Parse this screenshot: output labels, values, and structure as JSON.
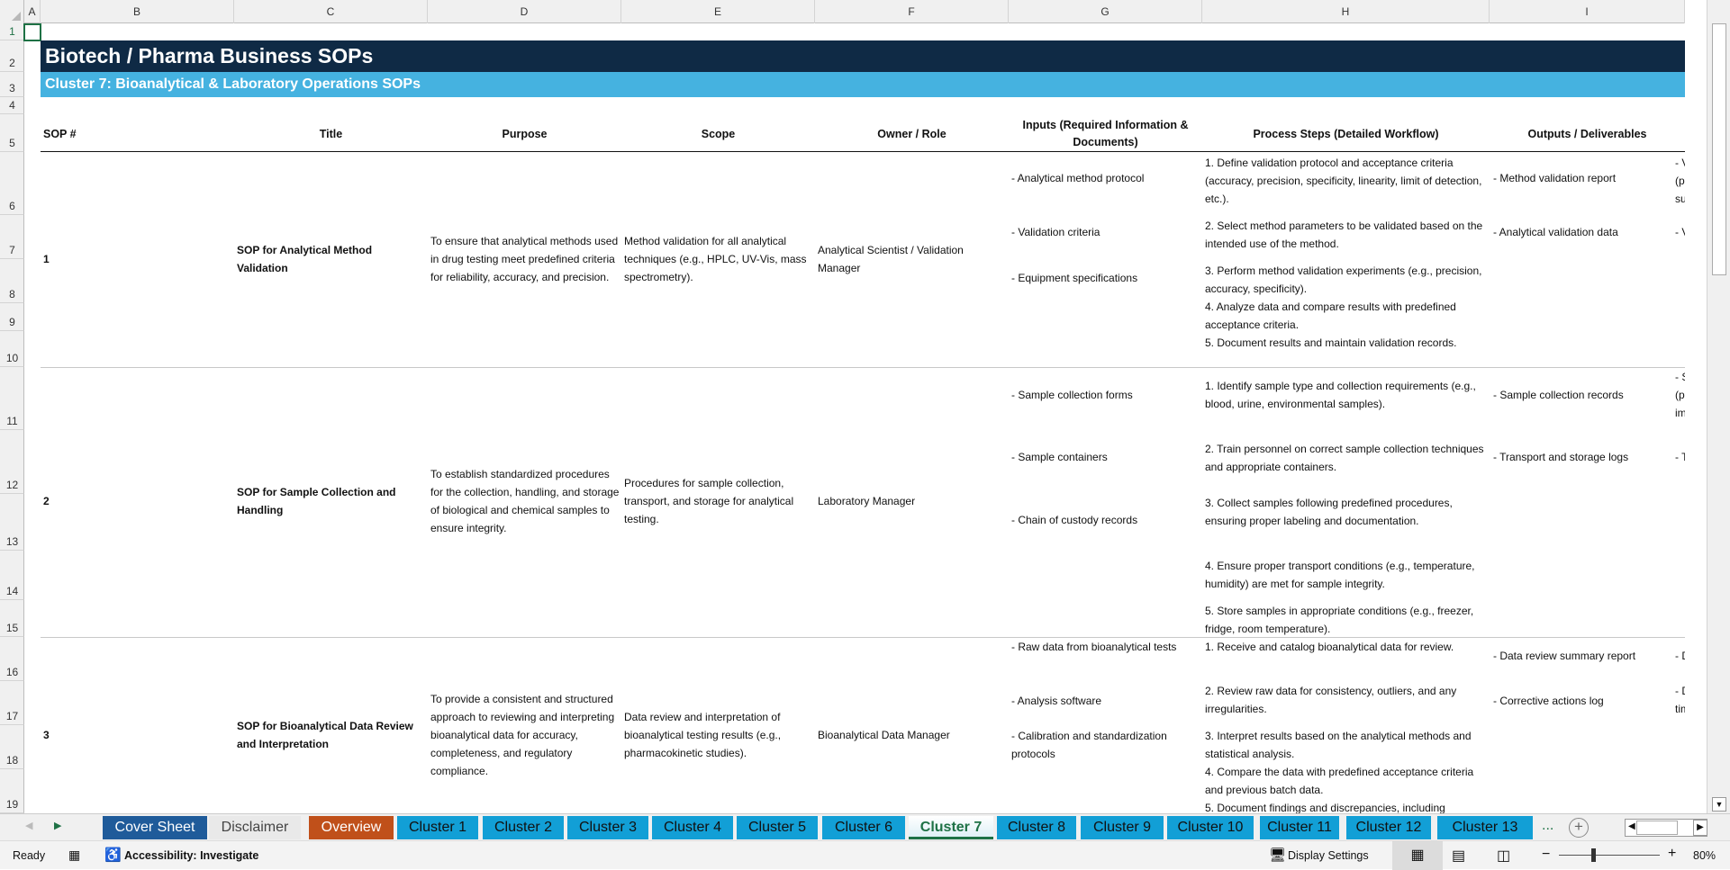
{
  "columns": [
    "A",
    "B",
    "C",
    "D",
    "E",
    "F",
    "G",
    "H",
    "I"
  ],
  "rows": [
    "1",
    "2",
    "3",
    "4",
    "5",
    "6",
    "7",
    "8",
    "9",
    "10",
    "11",
    "12",
    "13",
    "14",
    "15",
    "16",
    "17",
    "18",
    "19"
  ],
  "title": "Biotech / Pharma Business SOPs",
  "subtitle": "Cluster 7: Bioanalytical & Laboratory Operations SOPs",
  "headers": {
    "sop": "SOP #",
    "title": "Title",
    "purpose": "Purpose",
    "scope": "Scope",
    "owner": "Owner / Role",
    "inputs": "Inputs (Required Information & Documents)",
    "steps": "Process Steps (Detailed Workflow)",
    "outputs": "Outputs / Deliverables"
  },
  "sops": [
    {
      "num": "1",
      "title": "SOP for Analytical Method Validation",
      "purpose": "To ensure that analytical methods used in drug testing meet predefined criteria for reliability, accuracy, and precision.",
      "scope": "Method validation for all analytical techniques (e.g., HPLC, UV-Vis, mass spectrometry).",
      "owner": "Analytical Scientist / Validation Manager",
      "inputs": [
        "- Analytical method protocol",
        "- Validation criteria",
        "- Equipment specifications"
      ],
      "steps": [
        "1. Define validation protocol and acceptance criteria (accuracy, precision, specificity, linearity, limit of detection, etc.).",
        "2. Select method parameters to be validated based on the intended use of the method.",
        "3. Perform method validation experiments (e.g., precision, accuracy, specificity).",
        "4. Analyze data and compare results with predefined acceptance criteria.",
        "5. Document results and maintain validation records."
      ],
      "outputs": [
        "- Method validation report",
        "- Analytical validation data"
      ],
      "next_col": [
        "- Va",
        "(pe",
        "suc",
        "- Va"
      ]
    },
    {
      "num": "2",
      "title": "SOP for Sample Collection and Handling",
      "purpose": "To establish standardized procedures for the collection, handling, and storage of biological and chemical samples to ensure integrity.",
      "scope": "Procedures for sample collection, transport, and storage for analytical testing.",
      "owner": "Laboratory Manager",
      "inputs": [
        "- Sample collection forms",
        "- Sample containers",
        "- Chain of custody records"
      ],
      "steps": [
        "1. Identify sample type and collection requirements (e.g., blood, urine, environmental samples).",
        "2. Train personnel on correct sample collection techniques and appropriate containers.",
        "3. Collect samples following predefined procedures, ensuring proper labeling and documentation.",
        "4. Ensure proper transport conditions (e.g., temperature, humidity) are met for sample integrity.",
        "5. Store samples in appropriate conditions (e.g., freezer, fridge, room temperature)."
      ],
      "outputs": [
        "- Sample collection records",
        "- Transport and storage logs"
      ],
      "next_col": [
        "- Sa",
        "(pe",
        "imp",
        "- Ti"
      ]
    },
    {
      "num": "3",
      "title": "SOP for Bioanalytical Data Review and Interpretation",
      "purpose": "To provide a consistent and structured approach to reviewing and interpreting bioanalytical data for accuracy, completeness, and regulatory compliance.",
      "scope": "Data review and interpretation of bioanalytical testing results (e.g., pharmacokinetic studies).",
      "owner": "Bioanalytical Data Manager",
      "inputs": [
        "- Raw data from bioanalytical tests",
        "- Analysis software",
        "- Calibration and standardization protocols"
      ],
      "steps": [
        "1. Receive and catalog bioanalytical data for review.",
        "2. Review raw data for consistency, outliers, and any irregularities.",
        "3. Interpret results based on the analytical methods and statistical analysis.",
        "4. Compare the data with predefined acceptance criteria and previous batch data.",
        "5. Document findings and discrepancies, including"
      ],
      "outputs": [
        "- Data review summary report",
        "- Corrective actions log"
      ],
      "next_col": [
        "- Da",
        "- Da",
        "tim"
      ]
    }
  ],
  "tabs": [
    {
      "label": "Cover Sheet",
      "color": "#1f5b9a"
    },
    {
      "label": "Disclaimer",
      "color": "#e9e9e9"
    },
    {
      "label": "Overview",
      "color": "#c0501a"
    },
    {
      "label": "Cluster 1",
      "color": "#129fd6"
    },
    {
      "label": "Cluster 2",
      "color": "#129fd6"
    },
    {
      "label": "Cluster 3",
      "color": "#129fd6"
    },
    {
      "label": "Cluster 4",
      "color": "#129fd6"
    },
    {
      "label": "Cluster 5",
      "color": "#129fd6"
    },
    {
      "label": "Cluster 6",
      "color": "#129fd6"
    },
    {
      "label": "Cluster 7",
      "color": "#ffffff",
      "active": true
    },
    {
      "label": "Cluster 8",
      "color": "#129fd6"
    },
    {
      "label": "Cluster 9",
      "color": "#129fd6"
    },
    {
      "label": "Cluster 10",
      "color": "#129fd6"
    },
    {
      "label": "Cluster 11",
      "color": "#129fd6"
    },
    {
      "label": "Cluster 12",
      "color": "#129fd6"
    },
    {
      "label": "Cluster 13",
      "color": "#129fd6"
    }
  ],
  "tab_more": "...",
  "status": {
    "ready": "Ready",
    "accessibility": "Accessibility: Investigate",
    "display_settings": "Display Settings",
    "zoom": "80%",
    "zoom_level": 80
  }
}
